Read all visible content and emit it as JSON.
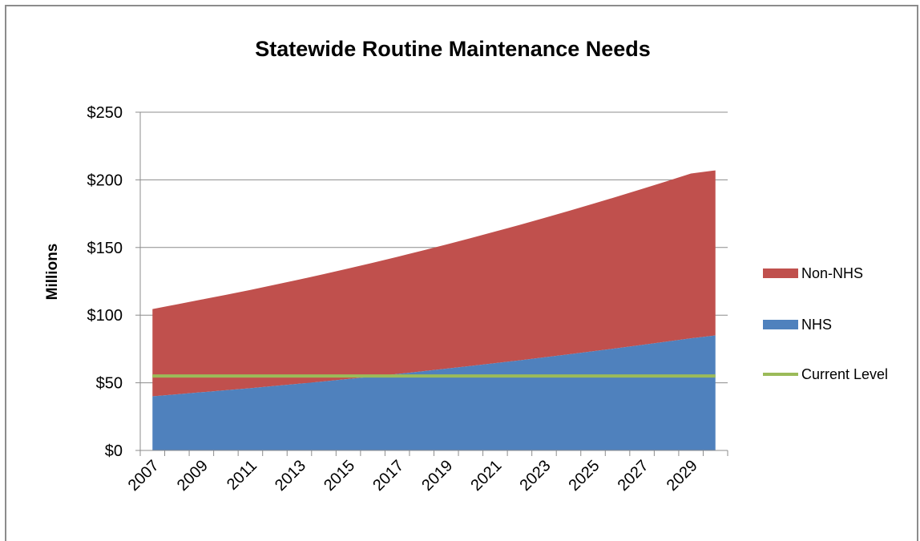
{
  "chart_data": {
    "type": "area",
    "stacked": true,
    "title": "Statewide Routine Maintenance Needs",
    "xlabel": "",
    "ylabel": "Millions",
    "x": [
      2007,
      2008,
      2009,
      2010,
      2011,
      2012,
      2013,
      2014,
      2015,
      2016,
      2017,
      2018,
      2019,
      2020,
      2021,
      2022,
      2023,
      2024,
      2025,
      2026,
      2027,
      2028,
      2029,
      2030
    ],
    "x_tick_labels": [
      "2007",
      "2009",
      "2011",
      "2013",
      "2015",
      "2017",
      "2019",
      "2021",
      "2023",
      "2025",
      "2027",
      "2029"
    ],
    "y_tick_labels": [
      "$0",
      "$50",
      "$100",
      "$150",
      "$200",
      "$250"
    ],
    "ylim": [
      0,
      250
    ],
    "grid": true,
    "legend_position": "right",
    "series": [
      {
        "name": "NHS",
        "color": "#4f81bd",
        "values": [
          40,
          41.5,
          43,
          44.5,
          46,
          47.7,
          49.3,
          51,
          52.8,
          54.6,
          56.5,
          58.4,
          60.4,
          62.4,
          64.5,
          66.6,
          68.8,
          71,
          73.3,
          75.6,
          78,
          80.4,
          82.9,
          85
        ]
      },
      {
        "name": "Non-NHS",
        "color": "#c0504d",
        "values": [
          64.5,
          66.5,
          68.5,
          70.5,
          72.6,
          74.8,
          77,
          79.3,
          81.7,
          84.1,
          86.6,
          89.2,
          91.8,
          94.5,
          97.3,
          100.1,
          103,
          106,
          109,
          112.1,
          115.3,
          118.5,
          121.8,
          122
        ]
      }
    ],
    "reference_line": {
      "name": "Current Level",
      "color": "#9bbb59",
      "value": 55
    },
    "legend": {
      "items": [
        {
          "label": "Non-NHS",
          "color": "#c0504d",
          "kind": "box"
        },
        {
          "label": "NHS",
          "color": "#4f81bd",
          "kind": "box"
        },
        {
          "label": "Current Level",
          "color": "#9bbb59",
          "kind": "line"
        }
      ]
    }
  }
}
